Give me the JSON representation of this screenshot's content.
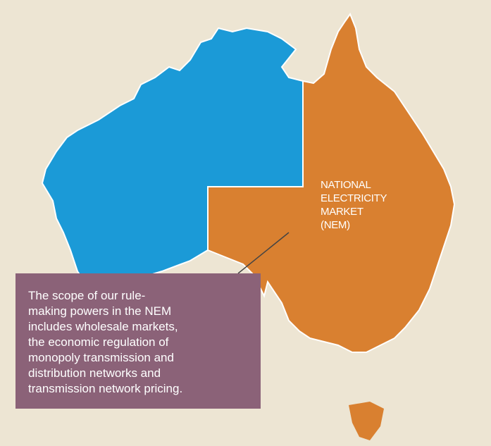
{
  "map": {
    "region_label": [
      "NATIONAL",
      "ELECTRICITY",
      "MARKET",
      "(NEM)"
    ],
    "callout": [
      "The scope of our rule-",
      "making powers in the NEM",
      "includes wholesale markets,",
      "the economic regulation of",
      "monopoly transmission and",
      "distribution networks and",
      "transmission network pricing."
    ]
  }
}
